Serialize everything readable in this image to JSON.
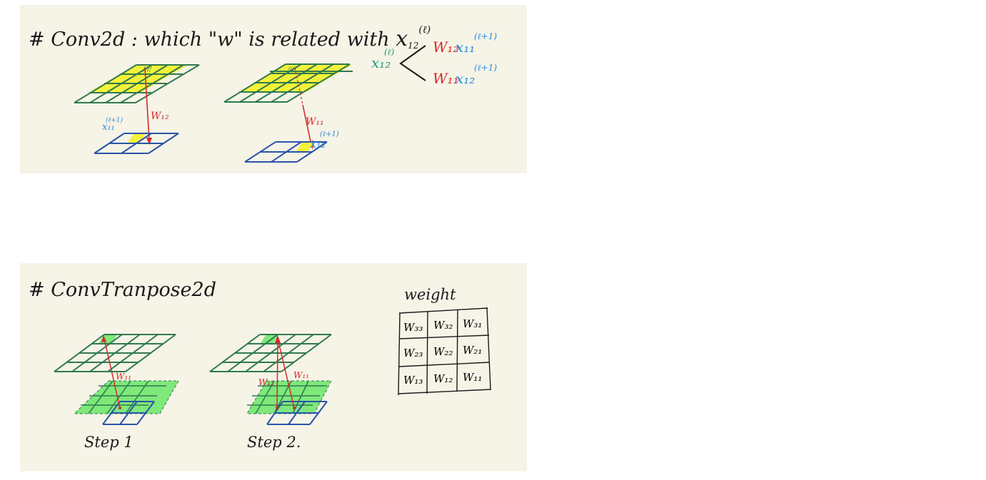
{
  "conv2d": {
    "title": "# Conv2d : which \"w\" is related with",
    "title_var": "x",
    "title_sub": "12",
    "title_sup": "(ℓ)",
    "left_arrow_label": "W₁₂",
    "left_output_label": "x₁₁",
    "left_output_sup": "(ℓ+1)",
    "right_arrow_label": "W₁₁",
    "right_output_label": "x₁₂",
    "right_output_sup": "(ℓ+1)",
    "hatch_label": "////",
    "relation": {
      "root_var": "x₁₂",
      "root_sup": "(ℓ)",
      "branches": [
        {
          "weight": "W₁₂",
          "var": "x₁₁",
          "sup": "(ℓ+1)"
        },
        {
          "weight": "W₁₁",
          "var": "x₁₂",
          "sup": "(ℓ+1)"
        }
      ]
    }
  },
  "convtranspose": {
    "title": "# ConvTranpose2d",
    "step1_label": "Step 1",
    "step2_label": "Step 2.",
    "step1_arrow_label": "W₁₁",
    "step2_arrow_label_left": "W₁₂",
    "step2_arrow_label_right": "W₁₁",
    "weight_title": "weight",
    "weight_matrix": [
      [
        "W₃₃",
        "W₃₂",
        "W₃₁"
      ],
      [
        "W₂₃",
        "W₂₂",
        "W₂₁"
      ],
      [
        "W₁₃",
        "W₁₂",
        "W₁₁"
      ]
    ]
  },
  "colors": {
    "panel_bg": "#f6f3e7",
    "grid_green": "#2f7a4e",
    "grid_blue": "#2a55a8",
    "yellow": "#f4f23a",
    "light_green": "#7ee87a",
    "arrow_red": "#d42a2a",
    "var_teal": "#2a9a7a",
    "var_blue": "#2a8ae0"
  }
}
